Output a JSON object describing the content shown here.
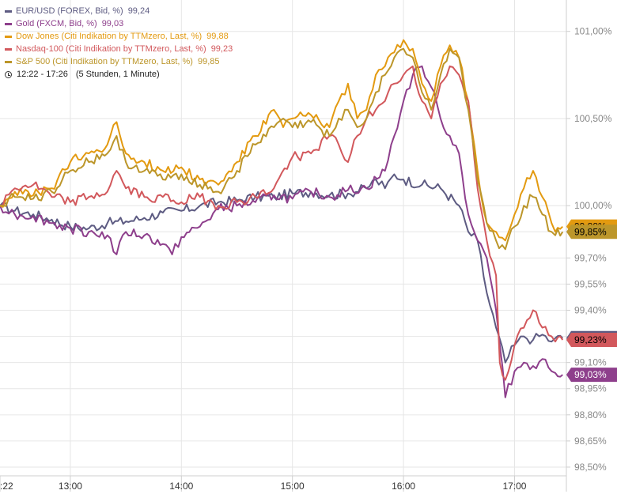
{
  "legend": {
    "items": [
      {
        "label": "EUR/USD (FOREX, Bid, %)",
        "value": "99,24",
        "color": "#5d5b82"
      },
      {
        "label": "Gold (FXCM, Bid, %)",
        "value": "99,03",
        "color": "#8e3f8c"
      },
      {
        "label": "Dow Jones (Citi Indikation by TTMzero, Last, %)",
        "value": "99,88",
        "color": "#e39a10"
      },
      {
        "label": "Nasdaq-100 (Citi Indikation by TTMzero, Last, %)",
        "value": "99,23",
        "color": "#d2585c"
      },
      {
        "label": "S&P 500 (Citi Indikation by TTMzero, Last, %)",
        "value": "99,85",
        "color": "#bc962a"
      }
    ],
    "range": "12:22 - 17:26",
    "interval": "(5 Stunden, 1 Minute)"
  },
  "chart_data": {
    "type": "line",
    "x_axis_ticks": [
      ":22",
      "13:00",
      "14:00",
      "15:00",
      "16:00",
      "17:00"
    ],
    "x_tick_minutes": [
      -38,
      0,
      60,
      120,
      180,
      240
    ],
    "y_axis_ticks": [
      "101,00%",
      "100,50%",
      "100,00%",
      "99,85%",
      "99,70%",
      "99,55%",
      "99,40%",
      "99,25%",
      "99,10%",
      "98,95%",
      "98,80%",
      "98,65%",
      "98,50%"
    ],
    "y_tick_values": [
      101.0,
      100.5,
      100.0,
      99.85,
      99.7,
      99.55,
      99.4,
      99.25,
      99.1,
      98.95,
      98.8,
      98.65,
      98.5
    ],
    "y_gridlines": [
      101.0,
      100.5,
      100.0,
      99.85,
      99.7,
      99.55,
      99.4,
      99.25,
      99.1,
      98.95,
      98.8,
      98.65,
      98.5
    ],
    "ylim": [
      98.45,
      101.18
    ],
    "x_range_minutes": [
      -38,
      268
    ],
    "grid": true,
    "series": [
      {
        "name": "EUR/USD (FOREX, Bid, %)",
        "color": "#5d5b82",
        "last_label": "99,24%",
        "minutes": [
          -38,
          -30,
          -20,
          -10,
          0,
          10,
          20,
          30,
          40,
          50,
          60,
          70,
          80,
          90,
          100,
          110,
          120,
          130,
          140,
          150,
          160,
          165,
          170,
          175,
          180,
          190,
          200,
          210,
          215,
          220,
          225,
          230,
          235,
          240,
          245,
          250,
          255,
          260,
          262,
          266
        ],
        "values": [
          100.0,
          99.97,
          99.95,
          99.92,
          99.88,
          99.87,
          99.9,
          99.91,
          99.93,
          99.96,
          99.97,
          100.0,
          100.02,
          100.03,
          100.05,
          100.05,
          100.07,
          100.08,
          100.06,
          100.07,
          100.1,
          100.15,
          100.1,
          100.18,
          100.15,
          100.12,
          100.1,
          100.0,
          99.85,
          99.8,
          99.5,
          99.3,
          99.1,
          99.2,
          99.25,
          99.23,
          99.26,
          99.22,
          99.24,
          99.24
        ]
      },
      {
        "name": "Gold (FXCM, Bid, %)",
        "color": "#8e3f8c",
        "last_label": "99,03%",
        "minutes": [
          -38,
          -30,
          -20,
          -10,
          0,
          10,
          20,
          25,
          30,
          40,
          50,
          55,
          60,
          70,
          80,
          90,
          100,
          110,
          120,
          130,
          140,
          150,
          160,
          170,
          175,
          180,
          185,
          190,
          195,
          200,
          205,
          210,
          215,
          220,
          225,
          230,
          232,
          235,
          240,
          245,
          250,
          255,
          260,
          262,
          266
        ],
        "values": [
          100.0,
          99.95,
          99.94,
          99.9,
          99.87,
          99.85,
          99.83,
          99.72,
          99.85,
          99.83,
          99.78,
          99.72,
          99.82,
          99.88,
          99.98,
          100.0,
          100.02,
          100.06,
          100.04,
          100.08,
          100.05,
          100.09,
          100.1,
          100.2,
          100.4,
          100.6,
          100.75,
          100.8,
          100.68,
          100.5,
          100.4,
          100.3,
          99.95,
          99.8,
          99.7,
          99.4,
          99.2,
          98.9,
          99.05,
          99.1,
          99.08,
          99.12,
          99.05,
          99.04,
          99.03
        ]
      },
      {
        "name": "Dow Jones (Citi Indikation by TTMzero, Last, %)",
        "color": "#e39a10",
        "last_label": "99,88%",
        "minutes": [
          -38,
          -30,
          -20,
          -10,
          0,
          10,
          20,
          25,
          30,
          40,
          50,
          60,
          70,
          80,
          90,
          100,
          110,
          115,
          120,
          130,
          140,
          145,
          150,
          155,
          160,
          165,
          170,
          175,
          180,
          185,
          190,
          195,
          200,
          205,
          210,
          215,
          220,
          225,
          230,
          235,
          240,
          245,
          250,
          255,
          260,
          262,
          266
        ],
        "values": [
          100.0,
          100.08,
          100.06,
          100.1,
          100.25,
          100.3,
          100.35,
          100.48,
          100.3,
          100.25,
          100.2,
          100.22,
          100.15,
          100.12,
          100.25,
          100.4,
          100.55,
          100.45,
          100.5,
          100.52,
          100.45,
          100.6,
          100.7,
          100.5,
          100.55,
          100.75,
          100.8,
          100.88,
          100.95,
          100.9,
          100.7,
          100.6,
          100.8,
          100.92,
          100.85,
          100.6,
          100.2,
          99.9,
          99.85,
          99.8,
          99.95,
          100.1,
          100.2,
          100.05,
          99.9,
          99.85,
          99.88
        ]
      },
      {
        "name": "Nasdaq-100 (Citi Indikation by TTMzero, Last, %)",
        "color": "#d2585c",
        "last_label": "99,23%",
        "minutes": [
          -38,
          -30,
          -20,
          -10,
          0,
          10,
          20,
          25,
          30,
          40,
          50,
          60,
          70,
          80,
          90,
          100,
          110,
          120,
          130,
          140,
          145,
          150,
          155,
          160,
          165,
          170,
          175,
          180,
          185,
          190,
          195,
          200,
          205,
          210,
          215,
          220,
          225,
          230,
          232,
          235,
          240,
          245,
          250,
          255,
          260,
          262,
          266
        ],
        "values": [
          100.0,
          100.1,
          100.12,
          100.05,
          100.02,
          100.05,
          100.08,
          100.2,
          100.1,
          100.05,
          100.05,
          100.02,
          100.05,
          100.0,
          100.02,
          100.05,
          100.1,
          100.28,
          100.3,
          100.4,
          100.35,
          100.25,
          100.4,
          100.5,
          100.55,
          100.6,
          100.7,
          100.75,
          100.8,
          100.6,
          100.5,
          100.7,
          100.8,
          100.75,
          100.6,
          100.1,
          99.8,
          99.6,
          99.1,
          99.0,
          99.2,
          99.3,
          99.4,
          99.3,
          99.25,
          99.22,
          99.23
        ]
      },
      {
        "name": "S&P 500 (Citi Indikation by TTMzero, Last, %)",
        "color": "#bc962a",
        "last_label": "99,85%",
        "minutes": [
          -38,
          -30,
          -20,
          -10,
          0,
          10,
          20,
          25,
          30,
          40,
          50,
          60,
          70,
          80,
          90,
          100,
          110,
          115,
          120,
          130,
          140,
          145,
          150,
          155,
          160,
          165,
          170,
          175,
          180,
          185,
          190,
          195,
          200,
          205,
          210,
          215,
          220,
          225,
          230,
          235,
          240,
          245,
          250,
          255,
          260,
          262,
          266
        ],
        "values": [
          100.0,
          100.05,
          100.04,
          100.08,
          100.2,
          100.25,
          100.3,
          100.4,
          100.25,
          100.2,
          100.15,
          100.18,
          100.12,
          100.08,
          100.2,
          100.35,
          100.45,
          100.5,
          100.45,
          100.48,
          100.4,
          100.5,
          100.55,
          100.45,
          100.5,
          100.65,
          100.75,
          100.85,
          100.9,
          100.85,
          100.65,
          100.55,
          100.75,
          100.9,
          100.85,
          100.55,
          100.15,
          99.9,
          99.8,
          99.75,
          99.88,
          100.0,
          100.05,
          99.95,
          99.85,
          99.83,
          99.85
        ]
      }
    ]
  }
}
